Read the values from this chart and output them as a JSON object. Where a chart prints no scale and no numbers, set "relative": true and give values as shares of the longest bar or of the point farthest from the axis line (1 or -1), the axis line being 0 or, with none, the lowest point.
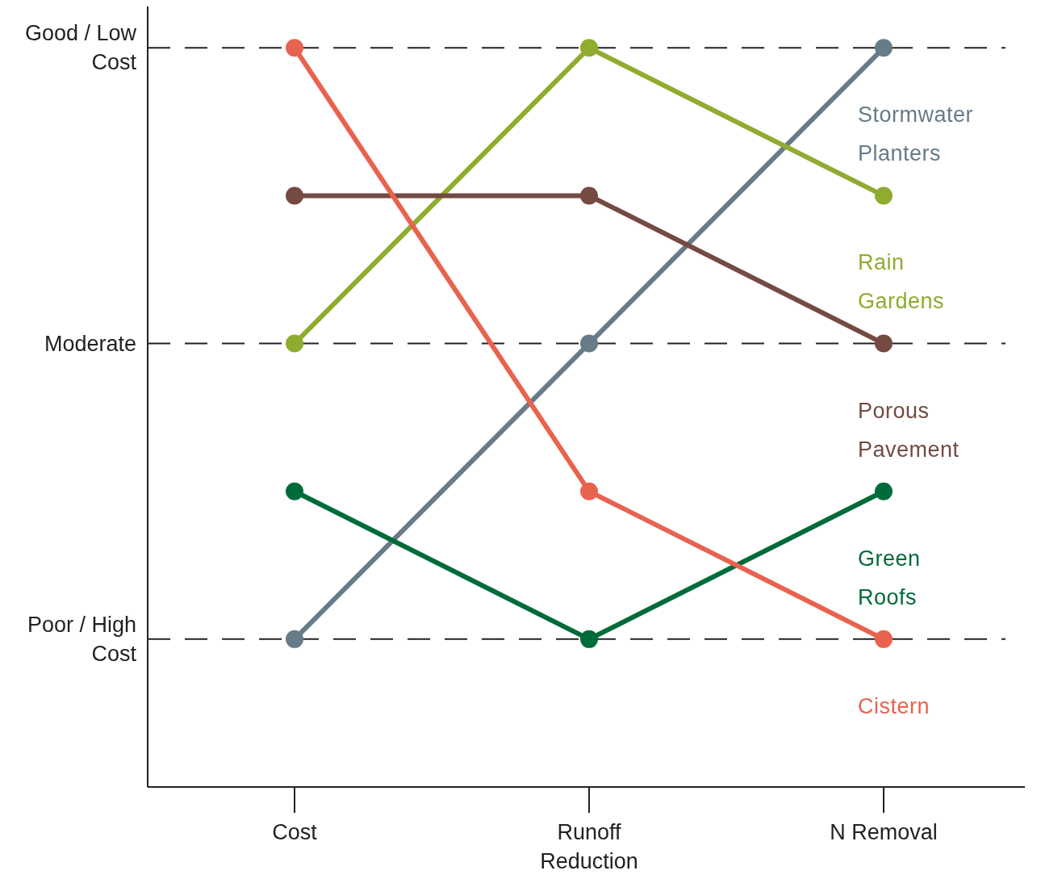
{
  "chart_data": {
    "type": "line",
    "relative": true,
    "categories": [
      "Cost",
      "Runoff Reduction",
      "N Removal"
    ],
    "series": [
      {
        "name": "Stormwater Planters",
        "color": "#677b88",
        "values": [
          0.2,
          0.6,
          1
        ]
      },
      {
        "name": "Rain Gardens",
        "color": "#8fac2e",
        "values": [
          0.6,
          1,
          0.8
        ]
      },
      {
        "name": "Porous Pavement",
        "color": "#744a42",
        "values": [
          0.8,
          0.8,
          0.6
        ]
      },
      {
        "name": "Green Roofs",
        "color": "#006b3a",
        "values": [
          0.4,
          0.2,
          0.4
        ]
      },
      {
        "name": "Cistern",
        "color": "#e8634f",
        "values": [
          1,
          0.4,
          0.2
        ]
      }
    ],
    "ref_lines": [
      {
        "axis": "y",
        "value": 0.2,
        "label": "Poor / High Cost",
        "color": "#222222",
        "line_style": "dashed"
      },
      {
        "axis": "y",
        "value": 0.6,
        "label": "Moderate",
        "color": "#222222",
        "line_style": "dashed"
      },
      {
        "axis": "y",
        "value": 1,
        "label": "Good / Low Cost",
        "color": "#222222",
        "line_style": "dashed"
      }
    ],
    "marker": "circle",
    "line_style": "solid"
  }
}
